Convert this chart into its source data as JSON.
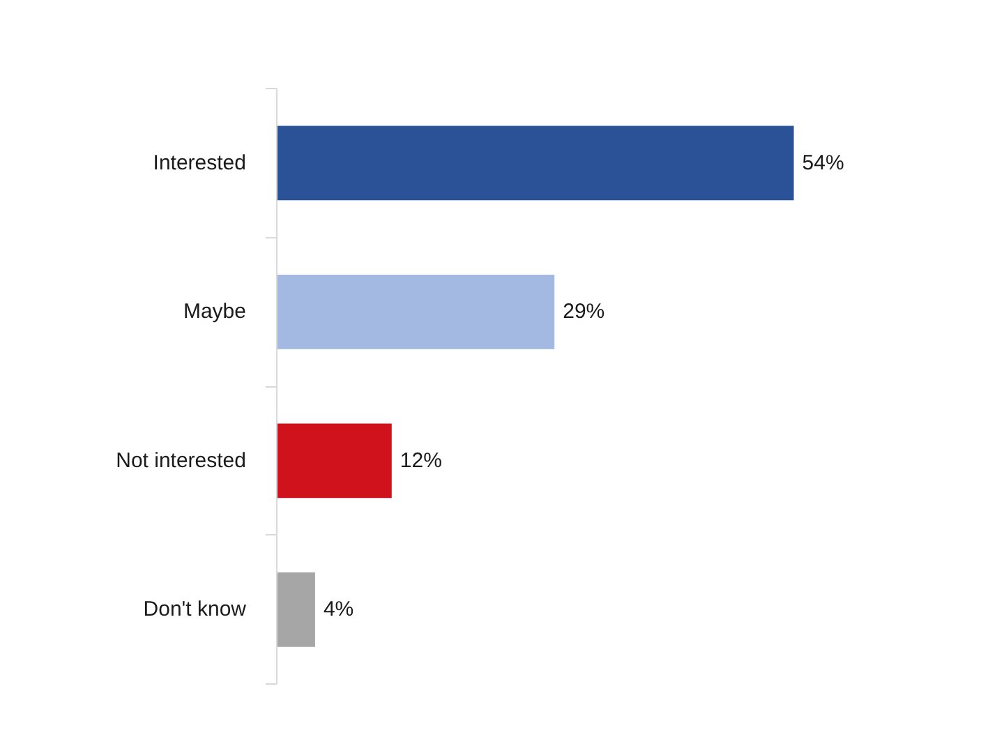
{
  "chart_data": {
    "type": "bar",
    "orientation": "horizontal",
    "categories": [
      "Interested",
      "Maybe",
      "Not interested",
      "Don't know"
    ],
    "values": [
      54,
      29,
      12,
      4
    ],
    "colors": [
      "#2b5197",
      "#a3b9e1",
      "#d0121c",
      "#a6a6a6"
    ],
    "value_labels": [
      "54%",
      "29%",
      "12%",
      "4%"
    ]
  }
}
